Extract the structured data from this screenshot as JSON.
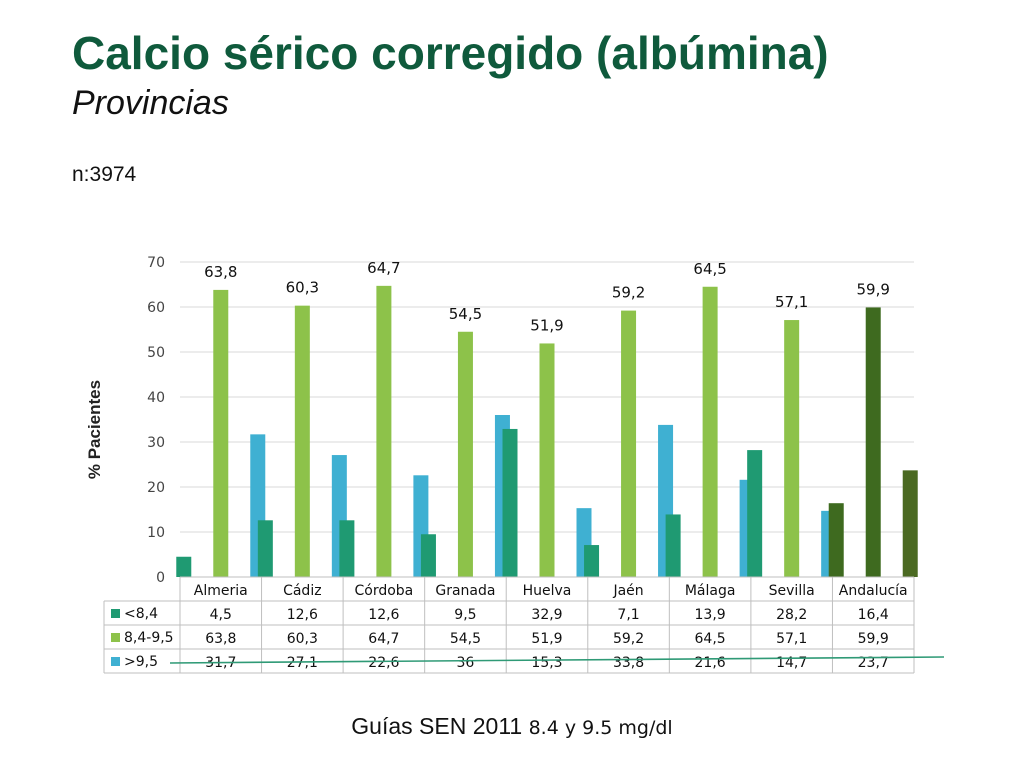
{
  "slide": {
    "title": "Calcio sérico corregido (albúmina)",
    "subtitle": "Provincias",
    "n_label": "n:3974",
    "source_main": "Guías SEN 2011",
    "source_note": "8.4 y 9.5 mg/dl"
  },
  "chart_data": {
    "type": "bar",
    "ylabel": "% Pacientes",
    "ylim": [
      0,
      70
    ],
    "yticks": [
      0,
      10,
      20,
      30,
      40,
      50,
      60,
      70
    ],
    "grid": true,
    "categories": [
      "Almeria",
      "Cádiz",
      "Córdoba",
      "Granada",
      "Huelva",
      "Jaén",
      "Málaga",
      "Sevilla",
      "Andalucía"
    ],
    "series": [
      {
        "name": "<8,4",
        "color": "#1f9a72",
        "highlight_color": "#3e6a1f",
        "values": [
          4.5,
          12.6,
          12.6,
          9.5,
          32.9,
          7.1,
          13.9,
          28.2,
          16.4
        ],
        "labels": [
          "4,5",
          "12,6",
          "12,6",
          "9,5",
          "32,9",
          "7,1",
          "13,9",
          "28,2",
          "16,4"
        ]
      },
      {
        "name": "8,4-9,5",
        "color": "#8dc24a",
        "highlight_color": "#3e6a1f",
        "values": [
          63.8,
          60.3,
          64.7,
          54.5,
          51.9,
          59.2,
          64.5,
          57.1,
          59.9
        ],
        "labels": [
          "63,8",
          "60,3",
          "64,7",
          "54,5",
          "51,9",
          "59,2",
          "64,5",
          "57,1",
          "59,9"
        ]
      },
      {
        "name": ">9,5",
        "color": "#3fb0d2",
        "highlight_color": "#4b6a22",
        "values": [
          31.7,
          27.1,
          22.6,
          36,
          15.3,
          33.8,
          21.6,
          14.7,
          23.7
        ],
        "labels": [
          "31,7",
          "27,1",
          "22,6",
          "36",
          "15,3",
          "33,8",
          "21,6",
          "14,7",
          "23,7"
        ]
      }
    ],
    "data_labels_series": "8,4-9,5",
    "highlight_category": "Andalucía",
    "data_table": true
  }
}
